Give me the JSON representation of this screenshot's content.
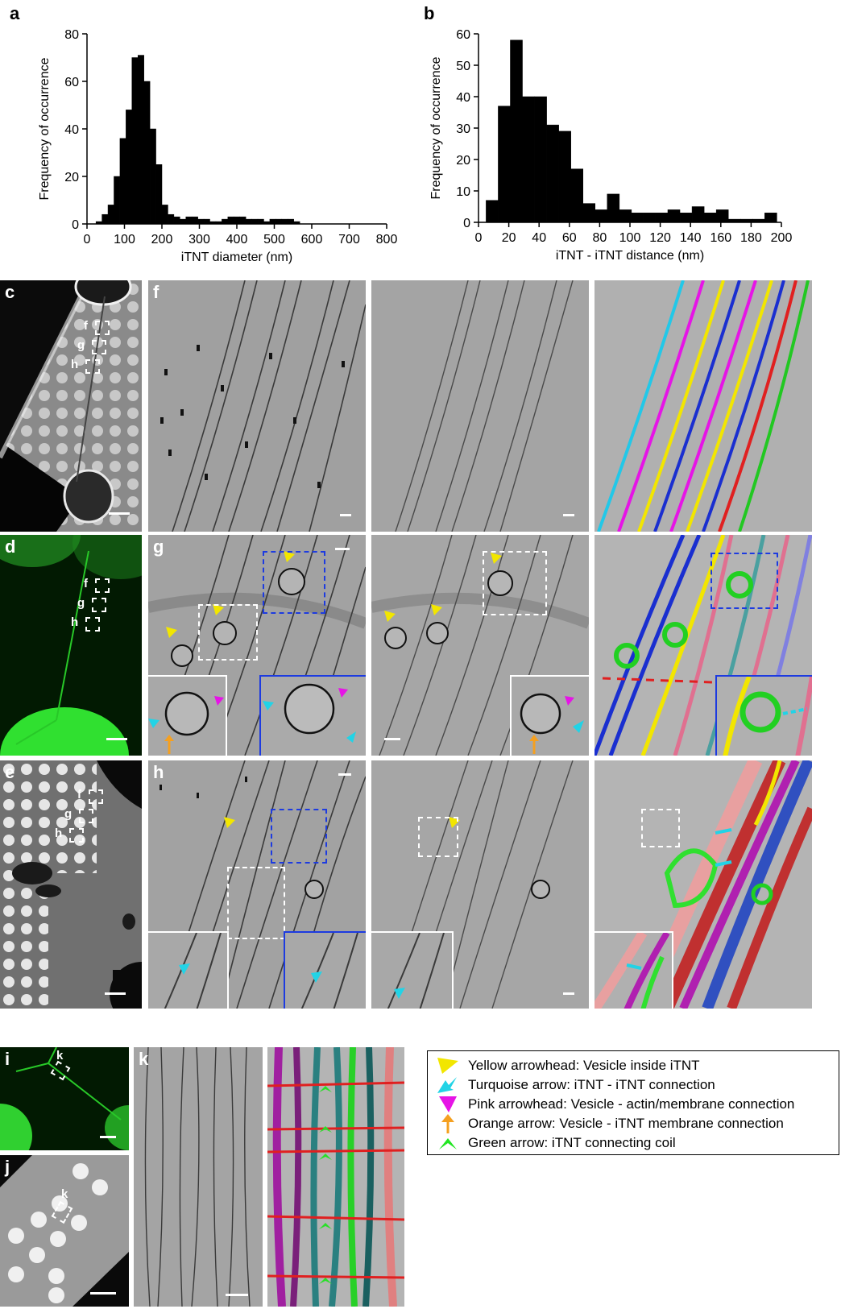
{
  "panels": {
    "a": "a",
    "b": "b",
    "c": "c",
    "d": "d",
    "e": "e",
    "f": "f",
    "g": "g",
    "h": "h",
    "i": "i",
    "j": "j",
    "k": "k"
  },
  "box_labels": {
    "f": "f",
    "g": "g",
    "h": "h",
    "k": "k"
  },
  "legend": {
    "items": [
      {
        "label": "Yellow arrowhead: Vesicle inside iTNT",
        "icon": "arrowhead-icon",
        "color": "#f2e600"
      },
      {
        "label": "Turquoise arrow: iTNT - iTNT connection",
        "icon": "arrow-icon",
        "color": "#22d3e6"
      },
      {
        "label": "Pink arrowhead: Vesicle - actin/membrane connection",
        "icon": "arrowhead-icon",
        "color": "#e614e6"
      },
      {
        "label": "Orange arrow: Vesicle - iTNT membrane connection",
        "icon": "arrow-up-icon",
        "color": "#f5a020"
      },
      {
        "label": "Green arrow: iTNT connecting coil",
        "icon": "double-chevron-icon",
        "color": "#22e622"
      }
    ]
  },
  "chart_data": [
    {
      "type": "bar",
      "panel": "a",
      "xlabel": "iTNT diameter (nm)",
      "ylabel": "Frequency of occurrence",
      "xlim": [
        0,
        800
      ],
      "ylim": [
        0,
        80
      ],
      "xticks": [
        0,
        100,
        200,
        300,
        400,
        500,
        600,
        700,
        800
      ],
      "yticks": [
        0,
        20,
        40,
        60,
        80
      ],
      "bin_width": 16,
      "bins_start": [
        24,
        40,
        56,
        72,
        88,
        104,
        120,
        136,
        152,
        168,
        184,
        200,
        216,
        232,
        248,
        264,
        280,
        296,
        312,
        328,
        344,
        360,
        376,
        392,
        408,
        424,
        440,
        456,
        472,
        488,
        504,
        520,
        536,
        552
      ],
      "values": [
        1,
        4,
        8,
        20,
        36,
        48,
        70,
        71,
        60,
        40,
        25,
        8,
        4,
        3,
        2,
        3,
        3,
        2,
        2,
        1,
        1,
        2,
        3,
        3,
        3,
        2,
        2,
        2,
        1,
        2,
        2,
        2,
        2,
        1
      ]
    },
    {
      "type": "bar",
      "panel": "b",
      "xlabel": "iTNT - iTNT distance (nm)",
      "ylabel": "Frequency of occurrence",
      "xlim": [
        0,
        200
      ],
      "ylim": [
        0,
        60
      ],
      "xticks": [
        0,
        20,
        40,
        60,
        80,
        100,
        120,
        140,
        160,
        180,
        200
      ],
      "yticks": [
        0,
        10,
        20,
        30,
        40,
        50,
        60
      ],
      "bin_width": 8,
      "bins_start": [
        5,
        13,
        21,
        29,
        37,
        45,
        53,
        61,
        69,
        77,
        85,
        93,
        101,
        109,
        117,
        125,
        133,
        141,
        149,
        157,
        165,
        173,
        181,
        189
      ],
      "values": [
        7,
        37,
        58,
        40,
        40,
        31,
        29,
        17,
        6,
        4,
        9,
        4,
        3,
        3,
        3,
        4,
        3,
        5,
        3,
        4,
        1,
        1,
        1,
        3
      ]
    }
  ]
}
